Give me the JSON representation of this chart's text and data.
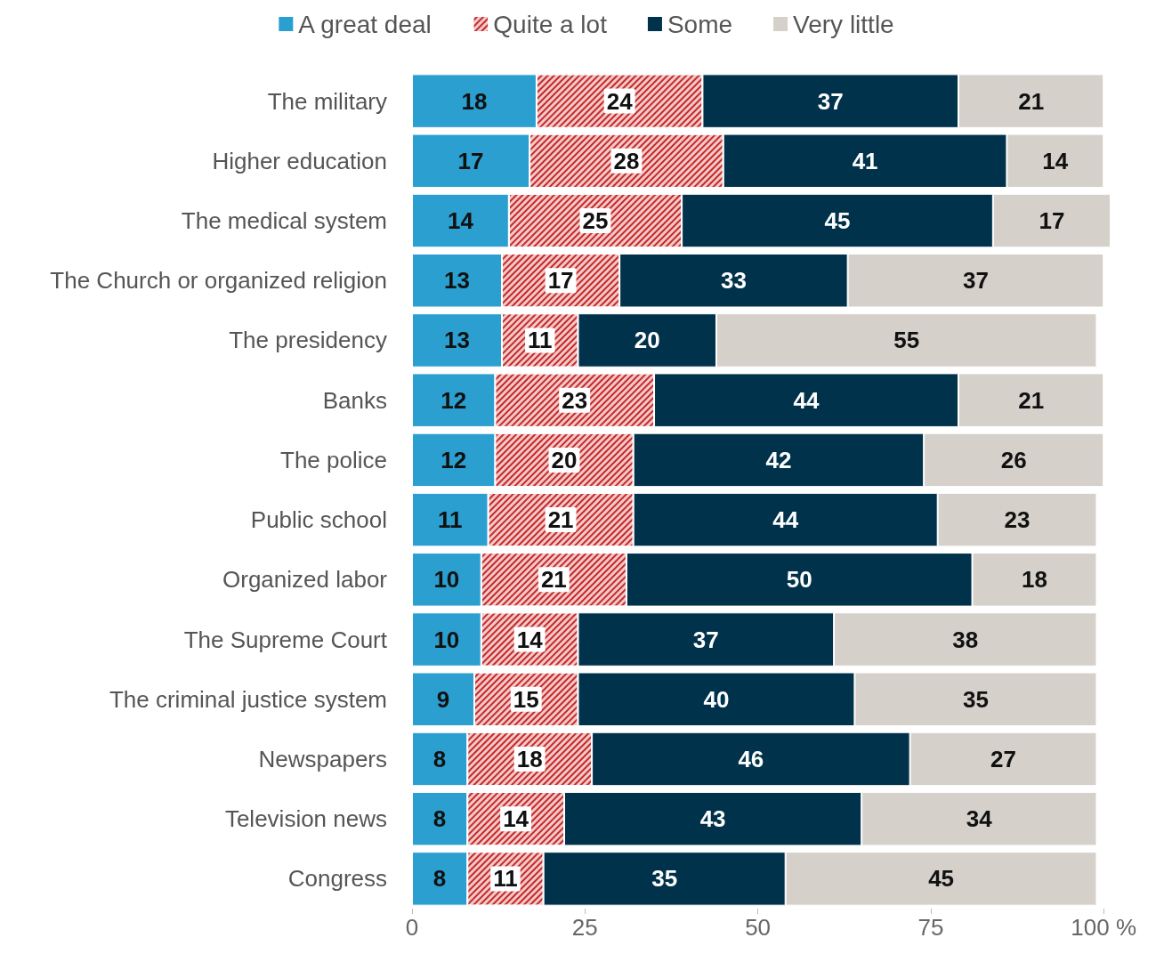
{
  "chart_data": {
    "type": "bar",
    "orientation": "horizontal",
    "stacked": true,
    "data_labels": true,
    "legend": "top",
    "grid": false,
    "categories": [
      "The military",
      "Higher education",
      "The medical system",
      "The Church or organized religion",
      "The presidency",
      "Banks",
      "The police",
      "Public school",
      "Organized labor",
      "The Supreme Court",
      "The criminal justice system",
      "Newspapers",
      "Television news",
      "Congress"
    ],
    "series": [
      {
        "name": "A great deal",
        "color": "#2b9fd0",
        "values": [
          18,
          17,
          14,
          13,
          13,
          12,
          12,
          11,
          10,
          10,
          9,
          8,
          8,
          8
        ]
      },
      {
        "name": "Quite a lot",
        "color": "#c62828",
        "values": [
          24,
          28,
          25,
          17,
          11,
          23,
          20,
          21,
          21,
          14,
          15,
          18,
          14,
          11
        ]
      },
      {
        "name": "Some",
        "color": "#01324b",
        "values": [
          37,
          41,
          45,
          33,
          20,
          44,
          42,
          44,
          50,
          37,
          40,
          46,
          43,
          35
        ]
      },
      {
        "name": "Very little",
        "color": "#d5d0ca",
        "values": [
          21,
          14,
          17,
          37,
          55,
          21,
          26,
          23,
          18,
          38,
          35,
          27,
          34,
          45
        ]
      }
    ],
    "xlim": [
      0,
      101
    ],
    "xticks": [
      0,
      25,
      50,
      75,
      {
        "value": 100,
        "label": "100 %"
      }
    ]
  }
}
